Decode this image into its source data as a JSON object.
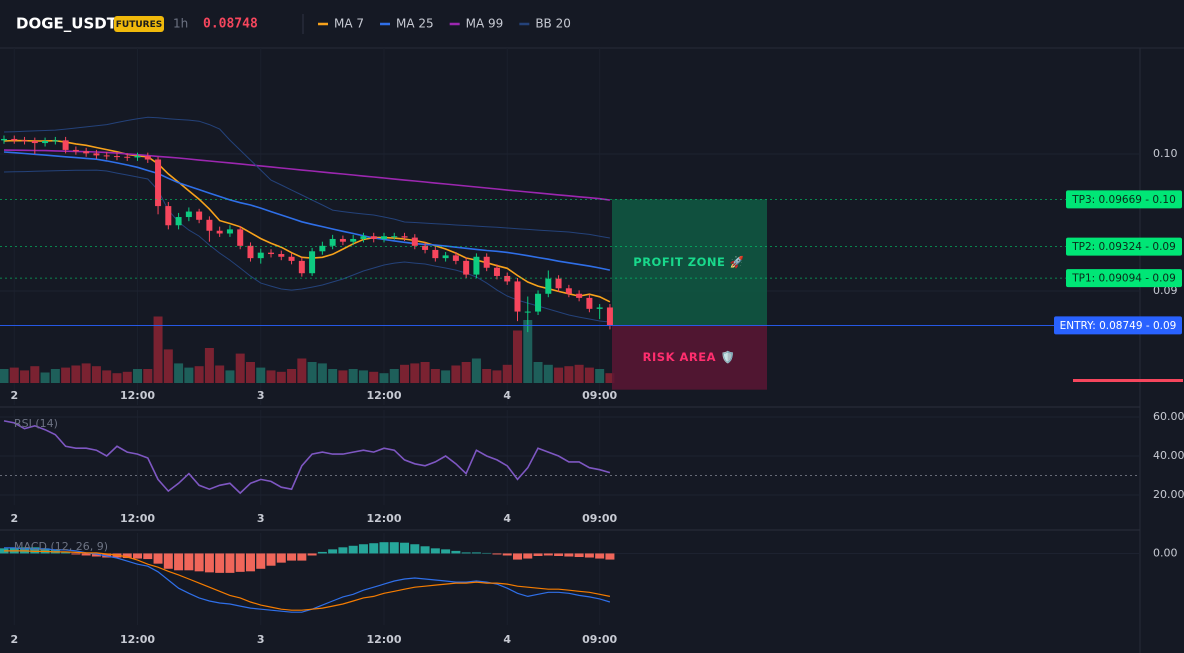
{
  "header": {
    "symbol": "DOGE_USDT",
    "badge": "FUTURES",
    "interval": "1h",
    "price": "0.08748"
  },
  "chart_data": [
    {
      "type": "candlestick",
      "categories": [
        null,
        "2",
        null,
        null,
        null,
        null,
        null,
        null,
        null,
        null,
        null,
        null,
        null,
        "12:00",
        null,
        null,
        null,
        null,
        null,
        null,
        null,
        null,
        null,
        null,
        null,
        "3",
        null,
        null,
        null,
        null,
        null,
        null,
        null,
        null,
        null,
        null,
        null,
        "12:00",
        null,
        null,
        null,
        null,
        null,
        null,
        null,
        null,
        null,
        null,
        null,
        "4",
        null,
        null,
        null,
        null,
        null,
        null,
        null,
        null,
        "09:00",
        null
      ],
      "open": [
        0.101,
        0.1011,
        0.101,
        0.10095,
        0.1008,
        0.10095,
        0.101,
        0.1003,
        0.1002,
        0.10005,
        0.0999,
        0.09985,
        0.0998,
        0.09975,
        0.09985,
        0.0996,
        0.0962,
        0.0948,
        0.0954,
        0.0958,
        0.0952,
        0.0944,
        0.0942,
        0.0945,
        0.0933,
        0.0924,
        0.0928,
        0.0927,
        0.0925,
        0.0922,
        0.0913,
        0.0929,
        0.0933,
        0.0938,
        0.0936,
        0.0938,
        0.094,
        0.0938,
        0.094,
        0.094,
        0.0939,
        0.0933,
        0.093,
        0.0924,
        0.0926,
        0.0922,
        0.0912,
        0.0925,
        0.0917,
        0.0911,
        0.0907,
        0.0885,
        0.0885,
        0.0898,
        0.0909,
        0.0902,
        0.0898,
        0.0895,
        0.0887,
        0.0888
      ],
      "high": [
        0.10135,
        0.10135,
        0.10125,
        0.1012,
        0.1012,
        0.10125,
        0.10125,
        0.10055,
        0.10045,
        0.1003,
        0.10015,
        0.1001,
        0.10005,
        0.1001,
        0.1001,
        0.0998,
        0.0965,
        0.0957,
        0.0961,
        0.096,
        0.09545,
        0.0947,
        0.0948,
        0.09475,
        0.09355,
        0.0931,
        0.09305,
        0.09295,
        0.09275,
        0.09245,
        0.09315,
        0.0936,
        0.0941,
        0.09405,
        0.0941,
        0.09425,
        0.09425,
        0.09425,
        0.09425,
        0.09425,
        0.09415,
        0.09355,
        0.09325,
        0.09285,
        0.09285,
        0.09245,
        0.09275,
        0.09275,
        0.09195,
        0.09135,
        0.09095,
        0.0896,
        0.09005,
        0.0915,
        0.09115,
        0.09045,
        0.09005,
        0.08975,
        0.08905,
        0.08905
      ],
      "low": [
        0.10075,
        0.10075,
        0.1007,
        0.1,
        0.10055,
        0.1007,
        0.10005,
        0.09995,
        0.0998,
        0.09965,
        0.0996,
        0.09955,
        0.0995,
        0.0995,
        0.09935,
        0.0956,
        0.0945,
        0.0945,
        0.0951,
        0.09495,
        0.0936,
        0.09395,
        0.09395,
        0.09305,
        0.09215,
        0.092,
        0.09245,
        0.09225,
        0.09195,
        0.09105,
        0.0911,
        0.09265,
        0.09305,
        0.09335,
        0.09335,
        0.09355,
        0.09355,
        0.09355,
        0.09375,
        0.09365,
        0.09305,
        0.09275,
        0.09215,
        0.09215,
        0.09195,
        0.09095,
        0.09095,
        0.09145,
        0.09085,
        0.09045,
        0.0878,
        0.087,
        0.08825,
        0.08955,
        0.08995,
        0.08955,
        0.08925,
        0.08845,
        0.08795,
        0.0872
      ],
      "close": [
        0.1011,
        0.101,
        0.10095,
        0.1008,
        0.10095,
        0.101,
        0.1003,
        0.1002,
        0.10005,
        0.0999,
        0.09985,
        0.0998,
        0.09975,
        0.09985,
        0.0996,
        0.0962,
        0.0948,
        0.0954,
        0.0958,
        0.0952,
        0.0944,
        0.0942,
        0.0945,
        0.0933,
        0.0924,
        0.0928,
        0.0927,
        0.0925,
        0.0922,
        0.0913,
        0.0929,
        0.0933,
        0.0938,
        0.0936,
        0.0938,
        0.094,
        0.0938,
        0.094,
        0.094,
        0.0939,
        0.0933,
        0.093,
        0.0924,
        0.0926,
        0.0922,
        0.0912,
        0.0925,
        0.0917,
        0.0911,
        0.0907,
        0.0885,
        0.0885,
        0.0898,
        0.0909,
        0.0902,
        0.0898,
        0.0895,
        0.0887,
        0.0888,
        0.08748
      ],
      "up_color": "#0ecb81",
      "down_color": "#f6465d",
      "ylim": [
        0.08168,
        0.10774
      ],
      "yticks": [
        {
          "value": 0.1,
          "label": "0.10"
        },
        {
          "value": 0.09,
          "label": "0.09"
        }
      ],
      "series": [
        {
          "name": "MA 7",
          "color": "#f7a21b",
          "values": [
            0.10095,
            0.10098,
            0.10097,
            0.10095,
            0.10095,
            0.10097,
            0.10087,
            0.10074,
            0.10064,
            0.10048,
            0.10032,
            0.10016,
            0.09998,
            0.09986,
            0.0998,
            0.09929,
            0.09855,
            0.09794,
            0.09731,
            0.0967,
            0.09598,
            0.09514,
            0.09493,
            0.09469,
            0.09426,
            0.09383,
            0.09349,
            0.0932,
            0.0928,
            0.09246,
            0.0924,
            0.09246,
            0.09268,
            0.09306,
            0.09345,
            0.09376,
            0.0939,
            0.0939,
            0.09386,
            0.0938,
            0.09369,
            0.09354,
            0.0933,
            0.09307,
            0.09277,
            0.09241,
            0.09226,
            0.09207,
            0.09185,
            0.09166,
            0.09113,
            0.09066,
            0.09036,
            0.09017,
            0.08997,
            0.0898,
            0.08963,
            0.08977,
            0.08958,
            0.08921
          ]
        },
        {
          "name": "MA 25",
          "color": "#2f6fe8",
          "values": [
            0.10015,
            0.1001,
            0.10004,
            0.09998,
            0.09992,
            0.09986,
            0.0998,
            0.09974,
            0.09968,
            0.09962,
            0.0995,
            0.09935,
            0.0992,
            0.09903,
            0.0988,
            0.09858,
            0.09823,
            0.0979,
            0.09765,
            0.0974,
            0.09715,
            0.0969,
            0.09665,
            0.09645,
            0.09628,
            0.09605,
            0.0958,
            0.09555,
            0.0953,
            0.09505,
            0.09487,
            0.0947,
            0.09453,
            0.09436,
            0.0942,
            0.09403,
            0.09387,
            0.09377,
            0.09366,
            0.09356,
            0.09346,
            0.0934,
            0.09336,
            0.09328,
            0.0932,
            0.09312,
            0.09304,
            0.09296,
            0.0929,
            0.09282,
            0.0927,
            0.09258,
            0.09245,
            0.09232,
            0.09218,
            0.09206,
            0.09194,
            0.09182,
            0.09168,
            0.09153
          ]
        },
        {
          "name": "MA 99",
          "color": "#9c27b0",
          "values": [
            0.10029,
            0.10028,
            0.10027,
            0.10026,
            0.10025,
            0.10023,
            0.10021,
            0.10019,
            0.10017,
            0.10015,
            0.10012,
            0.10007,
            0.10001,
            0.09995,
            0.09989,
            0.09983,
            0.09977,
            0.09971,
            0.09964,
            0.09956,
            0.09949,
            0.09942,
            0.09935,
            0.09928,
            0.0992,
            0.09913,
            0.09906,
            0.09898,
            0.09891,
            0.09883,
            0.09876,
            0.09868,
            0.09861,
            0.09854,
            0.09847,
            0.09839,
            0.09832,
            0.09825,
            0.09817,
            0.0981,
            0.09803,
            0.09796,
            0.09788,
            0.09781,
            0.09774,
            0.09767,
            0.09759,
            0.09752,
            0.09745,
            0.09737,
            0.0973,
            0.09723,
            0.09716,
            0.09709,
            0.09702,
            0.09695,
            0.09688,
            0.09681,
            0.09674,
            0.09664
          ]
        },
        {
          "name": "BB 20",
          "color": "#24427a",
          "upper": [
            0.10161,
            0.10163,
            0.10166,
            0.10169,
            0.10172,
            0.10175,
            0.10182,
            0.1019,
            0.10198,
            0.10206,
            0.10215,
            0.1023,
            0.10245,
            0.10258,
            0.10268,
            0.10265,
            0.10258,
            0.10252,
            0.10248,
            0.1024,
            0.10215,
            0.10182,
            0.10102,
            0.10029,
            0.09956,
            0.09883,
            0.0981,
            0.09774,
            0.09737,
            0.09701,
            0.09664,
            0.09628,
            0.09591,
            0.0958,
            0.0957,
            0.09562,
            0.09555,
            0.0954,
            0.09525,
            0.09504,
            0.095,
            0.09496,
            0.09491,
            0.09487,
            0.09482,
            0.09478,
            0.09474,
            0.09469,
            0.09465,
            0.0946,
            0.09455,
            0.0945,
            0.09445,
            0.0944,
            0.09435,
            0.09431,
            0.09422,
            0.09413,
            0.094,
            0.09387
          ],
          "lower": [
            0.09869,
            0.0987,
            0.09872,
            0.09874,
            0.09876,
            0.09878,
            0.0988,
            0.09881,
            0.09882,
            0.09883,
            0.09876,
            0.09861,
            0.09847,
            0.09832,
            0.09818,
            0.09737,
            0.09591,
            0.09504,
            0.09445,
            0.09401,
            0.09336,
            0.09277,
            0.09226,
            0.09168,
            0.09109,
            0.09058,
            0.09036,
            0.09015,
            0.09007,
            0.09015,
            0.09029,
            0.09044,
            0.09066,
            0.09088,
            0.09117,
            0.09146,
            0.09168,
            0.0919,
            0.09204,
            0.09212,
            0.09204,
            0.09197,
            0.09182,
            0.09168,
            0.09153,
            0.09131,
            0.09102,
            0.09058,
            0.09007,
            0.08964,
            0.08934,
            0.08912,
            0.08891,
            0.08869,
            0.08847,
            0.08825,
            0.0881,
            0.08796,
            0.08781,
            0.08774
          ]
        }
      ],
      "volume": {
        "ylim": [
          0,
          100
        ],
        "up_color": "#1e5f5a",
        "down_color": "#7a2231",
        "values": [
          20,
          22,
          18,
          24,
          15,
          20,
          22,
          25,
          28,
          24,
          18,
          14,
          16,
          20,
          20,
          95,
          48,
          28,
          22,
          24,
          50,
          25,
          18,
          42,
          30,
          22,
          18,
          16,
          20,
          35,
          30,
          28,
          20,
          18,
          20,
          18,
          16,
          14,
          20,
          26,
          28,
          30,
          20,
          18,
          25,
          30,
          35,
          20,
          18,
          26,
          75,
          90,
          30,
          26,
          22,
          24,
          26,
          22,
          20,
          14
        ]
      },
      "levels": [
        {
          "label": "TP3: 0.09669 - 0.10",
          "value": 0.09669,
          "color": "#00e676"
        },
        {
          "label": "TP2: 0.09324 - 0.09",
          "value": 0.09324,
          "color": "#00e676"
        },
        {
          "label": "TP1: 0.09094 - 0.09",
          "value": 0.09094,
          "color": "#00e676"
        },
        {
          "label": "ENTRY: 0.08749 - 0.09",
          "value": 0.08749,
          "color": "#2962ff"
        }
      ],
      "zones": [
        {
          "label": "PROFIT ZONE 🚀",
          "from": 0.08749,
          "to": 0.09669,
          "color": "#0f5a43",
          "text_color": "#19d98c"
        },
        {
          "label": "RISK AREA 🛡️",
          "from": 0.08749,
          "to": 0.0828,
          "color": "#5a1634",
          "text_color": "#ff2e6e"
        }
      ]
    },
    {
      "type": "line",
      "title": "RSI (14)",
      "color": "#7e57c2",
      "ylim": [
        14.9,
        63.6
      ],
      "guide": 30,
      "yticks": [
        {
          "value": 60,
          "label": "60.00"
        },
        {
          "value": 40,
          "label": "40.00"
        },
        {
          "value": 20,
          "label": "20.00"
        }
      ],
      "values": [
        58,
        57,
        54,
        55.5,
        53.5,
        51,
        45,
        44,
        44,
        43,
        40,
        45,
        42,
        41,
        39,
        28,
        22,
        26,
        31,
        25,
        23,
        25,
        26,
        21,
        26,
        28,
        27,
        24,
        23,
        35,
        41,
        42,
        41,
        41,
        42,
        43,
        42,
        44,
        43,
        38,
        36,
        35,
        37,
        40,
        36,
        31,
        43,
        40,
        38,
        35,
        28,
        34,
        44,
        42,
        40,
        37,
        37,
        34,
        33,
        31.5
      ]
    },
    {
      "type": "macd",
      "title": "MACD (12, 26, 9)",
      "ylim": [
        -0.0014,
        0.0004
      ],
      "yticks": [
        {
          "value": 0,
          "label": "0.00"
        }
      ],
      "up_color": "#26a69a",
      "down_color": "#f0665a",
      "macd_color": "#2f6fe8",
      "signal_color": "#f57c00",
      "histogram": [
        0.0001,
        0.00011,
        0.00012,
        0.00012,
        0.0001,
        8e-05,
        2e-05,
        -2e-05,
        -4e-05,
        -6e-05,
        -8e-05,
        -8e-05,
        -9e-05,
        -0.0001,
        -0.00011,
        -0.0002,
        -0.0003,
        -0.00033,
        -0.00033,
        -0.00035,
        -0.00037,
        -0.00038,
        -0.00038,
        -0.00036,
        -0.00035,
        -0.0003,
        -0.00024,
        -0.00018,
        -0.00014,
        -0.00014,
        -4e-05,
        3e-05,
        8e-05,
        0.00012,
        0.00015,
        0.00018,
        0.0002,
        0.00022,
        0.00022,
        0.00021,
        0.00018,
        0.00014,
        0.0001,
        8e-05,
        5e-05,
        2e-05,
        2e-05,
        1e-05,
        -2e-05,
        -4e-05,
        -0.00012,
        -0.0001,
        -5e-05,
        -4e-05,
        -5e-05,
        -6e-05,
        -7e-05,
        -8e-05,
        -0.0001,
        -0.00012
      ],
      "macd": [
        0.00011,
        0.00011,
        9e-05,
        9e-05,
        9e-05,
        7e-05,
        7e-05,
        5e-05,
        1e-05,
        -1e-05,
        -5e-05,
        -9e-05,
        -0.00015,
        -0.00021,
        -0.00025,
        -0.00036,
        -0.00052,
        -0.00068,
        -0.00078,
        -0.00087,
        -0.00093,
        -0.00097,
        -0.00099,
        -0.00103,
        -0.00107,
        -0.00109,
        -0.00111,
        -0.00113,
        -0.00115,
        -0.00115,
        -0.00109,
        -0.00101,
        -0.00093,
        -0.00085,
        -0.0008,
        -0.00072,
        -0.00066,
        -0.0006,
        -0.00054,
        -0.0005,
        -0.00048,
        -0.0005,
        -0.00052,
        -0.00054,
        -0.00056,
        -0.00056,
        -0.00054,
        -0.00056,
        -0.0006,
        -0.00068,
        -0.00078,
        -0.00084,
        -0.0008,
        -0.00076,
        -0.00076,
        -0.00078,
        -0.00082,
        -0.00085,
        -0.00089,
        -0.00095
      ],
      "signal": [
        5e-05,
        5e-05,
        5e-05,
        4e-05,
        4e-05,
        3e-05,
        3e-05,
        2e-05,
        1e-05,
        1e-05,
        -1e-05,
        -3e-05,
        -7e-05,
        -0.00013,
        -0.00021,
        -0.00027,
        -0.00035,
        -0.00042,
        -0.0005,
        -0.00058,
        -0.00066,
        -0.00074,
        -0.00082,
        -0.00087,
        -0.00095,
        -0.00101,
        -0.00105,
        -0.00109,
        -0.00111,
        -0.00111,
        -0.00109,
        -0.00107,
        -0.00103,
        -0.00099,
        -0.00093,
        -0.00087,
        -0.00084,
        -0.00078,
        -0.00074,
        -0.0007,
        -0.00066,
        -0.00064,
        -0.00062,
        -0.0006,
        -0.00058,
        -0.00058,
        -0.00056,
        -0.00058,
        -0.00058,
        -0.0006,
        -0.00064,
        -0.00066,
        -0.00068,
        -0.0007,
        -0.0007,
        -0.00072,
        -0.00074,
        -0.00076,
        -0.0008,
        -0.00084
      ]
    }
  ]
}
